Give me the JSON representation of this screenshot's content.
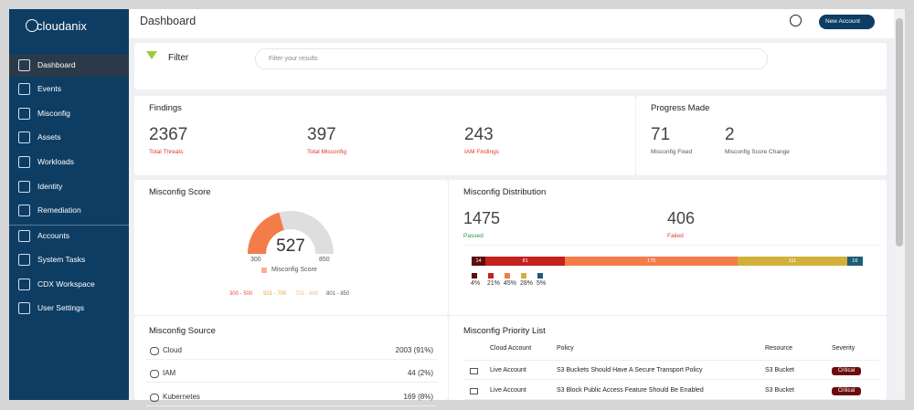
{
  "sidebar": {
    "logo": "cloudanix",
    "menu": [
      "Dashboard",
      "Events",
      "Misconfig",
      "Assets",
      "Workloads",
      "Identity",
      "Remediation",
      "Accounts",
      "System Tasks",
      "CDX Workspace",
      "User Settings"
    ]
  },
  "header": {
    "title": "Dashboard",
    "button": "New Account"
  },
  "filter": {
    "label": "Filter",
    "placeholder": "Filter your results"
  },
  "findings": {
    "title": "Findings",
    "stats": [
      {
        "value": 2367,
        "label": "Total Threats"
      },
      {
        "value": 397,
        "label": "Total Misconfig"
      },
      {
        "value": 243,
        "label": "IAM Findings"
      }
    ]
  },
  "progress": {
    "title": "Progress Made",
    "stats": [
      {
        "value": 71,
        "label": "Misconfig Fixed"
      },
      {
        "value": 2,
        "label": "Misconfig Score Change"
      }
    ]
  },
  "score": {
    "title": "Misconfig Score",
    "value": 527,
    "min": 300,
    "max": 850,
    "legend": "Misconfig Score",
    "color": "#f47c48",
    "ranges": [
      {
        "label": "300 - 500",
        "color": "#e0533a"
      },
      {
        "label": "501 - 700",
        "color": "#f39a3c"
      },
      {
        "label": "701 - 800",
        "color": "#e8b98a"
      },
      {
        "label": "801 - 850",
        "color": "#4a5a6a"
      }
    ]
  },
  "distribution": {
    "title": "Misconfig Distribution",
    "passed": {
      "value": 1475,
      "label": "Passed"
    },
    "failed": {
      "value": 406,
      "label": "Failed"
    },
    "segments": [
      {
        "value": 14,
        "percent": "4%",
        "color": "#5c0e0e"
      },
      {
        "value": 81,
        "percent": "21%",
        "color": "#c4211f"
      },
      {
        "value": 175,
        "percent": "45%",
        "color": "#f47c48"
      },
      {
        "value": 111,
        "percent": "28%",
        "color": "#d2b03a"
      },
      {
        "value": 16,
        "percent": "5%",
        "color": "#1f5c7a"
      }
    ]
  },
  "source": {
    "title": "Misconfig Source",
    "rows": [
      [
        "Cloud",
        "2003 (91%)"
      ],
      [
        "IAM",
        "44 (2%)"
      ],
      [
        "Kubernetes",
        "169 (8%)"
      ]
    ]
  },
  "priority": {
    "title": "Misconfig Priority List",
    "columns": [
      "Cloud Account",
      "Policy",
      "Resource",
      "Severity"
    ],
    "rows": [
      [
        "Live Account",
        "S3 Buckets Should Have A Secure Transport Policy",
        "S3 Bucket",
        "Critical"
      ],
      [
        "Live Account",
        "S3 Block Public Access Feature Should Be Enabled",
        "S3 Bucket",
        "Critical"
      ]
    ]
  }
}
